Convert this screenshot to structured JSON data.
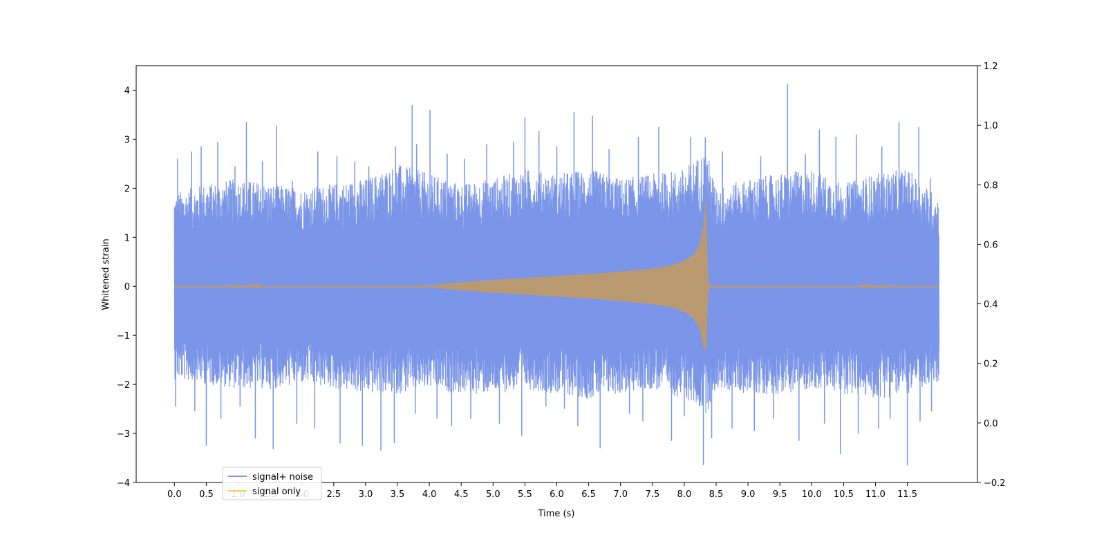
{
  "chart_data": {
    "type": "line",
    "xlabel": "Time (s)",
    "ylabel": "Whitened strain",
    "xlim": [
      -0.6,
      12.6
    ],
    "ylim": [
      -4.0,
      4.5
    ],
    "y2lim": [
      -0.2,
      1.2
    ],
    "x_ticks": [
      "0.0",
      "0.5",
      "1.0",
      "1.5",
      "2.0",
      "2.5",
      "3.0",
      "3.5",
      "4.0",
      "4.5",
      "5.0",
      "5.5",
      "6.0",
      "6.5",
      "7.0",
      "7.5",
      "8.0",
      "8.5",
      "9.0",
      "9.5",
      "10.0",
      "10.5",
      "11.0",
      "11.5"
    ],
    "y_ticks": [
      "−4",
      "−3",
      "−2",
      "−1",
      "0",
      "1",
      "2",
      "3",
      "4"
    ],
    "y2_ticks": [
      "−0.2",
      "0.0",
      "0.2",
      "0.4",
      "0.6",
      "0.8",
      "1.0",
      "1.2"
    ],
    "grid": false,
    "legend_position": "lower-left",
    "series": [
      {
        "name": "signal+ noise",
        "color": "#7b96e8",
        "x_range": [
          0.0,
          12.0
        ],
        "envelope_upper": [
          [
            0.0,
            1.9
          ],
          [
            0.5,
            2.1
          ],
          [
            1.0,
            2.2
          ],
          [
            1.5,
            2.1
          ],
          [
            2.0,
            2.0
          ],
          [
            2.5,
            2.1
          ],
          [
            3.0,
            2.2
          ],
          [
            3.5,
            2.5
          ],
          [
            4.0,
            2.3
          ],
          [
            4.5,
            2.1
          ],
          [
            5.0,
            2.2
          ],
          [
            5.5,
            2.4
          ],
          [
            6.0,
            2.3
          ],
          [
            6.5,
            2.4
          ],
          [
            7.0,
            2.2
          ],
          [
            7.5,
            2.3
          ],
          [
            8.0,
            2.4
          ],
          [
            8.35,
            2.8
          ],
          [
            8.5,
            2.0
          ],
          [
            9.0,
            2.2
          ],
          [
            9.5,
            2.3
          ],
          [
            10.0,
            2.4
          ],
          [
            10.5,
            2.1
          ],
          [
            11.0,
            2.3
          ],
          [
            11.5,
            2.4
          ],
          [
            12.0,
            1.8
          ]
        ],
        "envelope_lower": [
          [
            0.0,
            -1.9
          ],
          [
            0.5,
            -2.0
          ],
          [
            1.0,
            -2.1
          ],
          [
            1.5,
            -2.1
          ],
          [
            2.0,
            -2.0
          ],
          [
            2.5,
            -2.1
          ],
          [
            3.0,
            -2.2
          ],
          [
            3.5,
            -2.2
          ],
          [
            4.0,
            -2.1
          ],
          [
            4.5,
            -2.2
          ],
          [
            5.0,
            -2.2
          ],
          [
            5.5,
            -2.1
          ],
          [
            6.0,
            -2.2
          ],
          [
            6.5,
            -2.3
          ],
          [
            7.0,
            -2.2
          ],
          [
            7.5,
            -2.1
          ],
          [
            8.0,
            -2.3
          ],
          [
            8.35,
            -2.6
          ],
          [
            8.5,
            -2.1
          ],
          [
            9.0,
            -2.2
          ],
          [
            9.5,
            -2.2
          ],
          [
            10.0,
            -2.1
          ],
          [
            10.5,
            -2.2
          ],
          [
            11.0,
            -2.3
          ],
          [
            11.5,
            -2.2
          ],
          [
            12.0,
            -2.0
          ]
        ],
        "peaks": [
          [
            0.05,
            2.6
          ],
          [
            0.27,
            2.75
          ],
          [
            0.42,
            2.85
          ],
          [
            0.68,
            2.95
          ],
          [
            0.95,
            2.45
          ],
          [
            1.13,
            3.35
          ],
          [
            1.38,
            2.55
          ],
          [
            1.6,
            3.28
          ],
          [
            1.85,
            2.15
          ],
          [
            2.25,
            2.75
          ],
          [
            2.55,
            2.65
          ],
          [
            2.83,
            2.55
          ],
          [
            3.05,
            2.45
          ],
          [
            3.47,
            2.85
          ],
          [
            3.73,
            3.7
          ],
          [
            3.8,
            2.9
          ],
          [
            4.01,
            3.6
          ],
          [
            4.28,
            2.7
          ],
          [
            4.55,
            2.6
          ],
          [
            4.9,
            2.9
          ],
          [
            5.32,
            2.95
          ],
          [
            5.5,
            3.45
          ],
          [
            5.72,
            3.17
          ],
          [
            6.0,
            2.85
          ],
          [
            6.27,
            3.55
          ],
          [
            6.56,
            3.48
          ],
          [
            6.82,
            2.8
          ],
          [
            7.28,
            3.05
          ],
          [
            7.6,
            3.25
          ],
          [
            8.1,
            3.05
          ],
          [
            8.33,
            3.04
          ],
          [
            8.6,
            2.75
          ],
          [
            9.2,
            2.65
          ],
          [
            9.62,
            4.12
          ],
          [
            9.9,
            2.7
          ],
          [
            10.12,
            3.2
          ],
          [
            10.38,
            3.05
          ],
          [
            10.7,
            3.1
          ],
          [
            11.1,
            2.85
          ],
          [
            11.37,
            3.35
          ],
          [
            11.68,
            3.25
          ],
          [
            11.86,
            2.2
          ]
        ],
        "troughs": [
          [
            0.02,
            -2.45
          ],
          [
            0.32,
            -2.55
          ],
          [
            0.5,
            -3.25
          ],
          [
            0.73,
            -2.7
          ],
          [
            1.03,
            -2.45
          ],
          [
            1.27,
            -3.1
          ],
          [
            1.55,
            -3.32
          ],
          [
            1.92,
            -2.8
          ],
          [
            2.2,
            -2.9
          ],
          [
            2.6,
            -3.2
          ],
          [
            2.95,
            -3.25
          ],
          [
            3.24,
            -3.35
          ],
          [
            3.45,
            -3.2
          ],
          [
            3.78,
            -2.6
          ],
          [
            4.12,
            -2.7
          ],
          [
            4.35,
            -2.85
          ],
          [
            4.65,
            -2.7
          ],
          [
            5.1,
            -2.8
          ],
          [
            5.45,
            -3.05
          ],
          [
            5.83,
            -2.45
          ],
          [
            6.12,
            -2.5
          ],
          [
            6.33,
            -2.85
          ],
          [
            6.68,
            -3.3
          ],
          [
            7.14,
            -2.6
          ],
          [
            7.35,
            -2.75
          ],
          [
            7.8,
            -3.15
          ],
          [
            8.0,
            -2.65
          ],
          [
            8.3,
            -3.65
          ],
          [
            8.43,
            -3.1
          ],
          [
            8.75,
            -2.9
          ],
          [
            9.1,
            -2.95
          ],
          [
            9.4,
            -2.7
          ],
          [
            9.8,
            -3.15
          ],
          [
            10.2,
            -2.8
          ],
          [
            10.45,
            -3.42
          ],
          [
            10.73,
            -3.0
          ],
          [
            11.05,
            -2.9
          ],
          [
            11.23,
            -2.7
          ],
          [
            11.5,
            -3.65
          ],
          [
            11.7,
            -2.75
          ],
          [
            11.88,
            -2.55
          ]
        ]
      },
      {
        "name": "signal only",
        "color": "#ffc658",
        "x_range": [
          0.0,
          12.0
        ],
        "envelope_upper": [
          [
            0.0,
            0.0
          ],
          [
            4.0,
            0.02
          ],
          [
            4.5,
            0.08
          ],
          [
            5.0,
            0.13
          ],
          [
            5.5,
            0.17
          ],
          [
            6.0,
            0.21
          ],
          [
            6.5,
            0.25
          ],
          [
            7.0,
            0.3
          ],
          [
            7.5,
            0.36
          ],
          [
            7.8,
            0.43
          ],
          [
            8.0,
            0.52
          ],
          [
            8.15,
            0.65
          ],
          [
            8.25,
            0.85
          ],
          [
            8.31,
            1.3
          ],
          [
            8.34,
            1.8
          ],
          [
            8.37,
            0.15
          ],
          [
            8.4,
            0.02
          ],
          [
            12.0,
            0.0
          ]
        ],
        "envelope_lower": [
          [
            0.0,
            0.0
          ],
          [
            4.0,
            -0.02
          ],
          [
            4.5,
            -0.08
          ],
          [
            5.0,
            -0.13
          ],
          [
            5.5,
            -0.17
          ],
          [
            6.0,
            -0.21
          ],
          [
            6.5,
            -0.25
          ],
          [
            7.0,
            -0.3
          ],
          [
            7.5,
            -0.36
          ],
          [
            7.8,
            -0.43
          ],
          [
            8.0,
            -0.52
          ],
          [
            8.15,
            -0.65
          ],
          [
            8.25,
            -0.9
          ],
          [
            8.31,
            -1.3
          ],
          [
            8.34,
            -1.25
          ],
          [
            8.37,
            -0.1
          ],
          [
            8.4,
            -0.02
          ],
          [
            12.0,
            0.0
          ]
        ]
      }
    ]
  }
}
